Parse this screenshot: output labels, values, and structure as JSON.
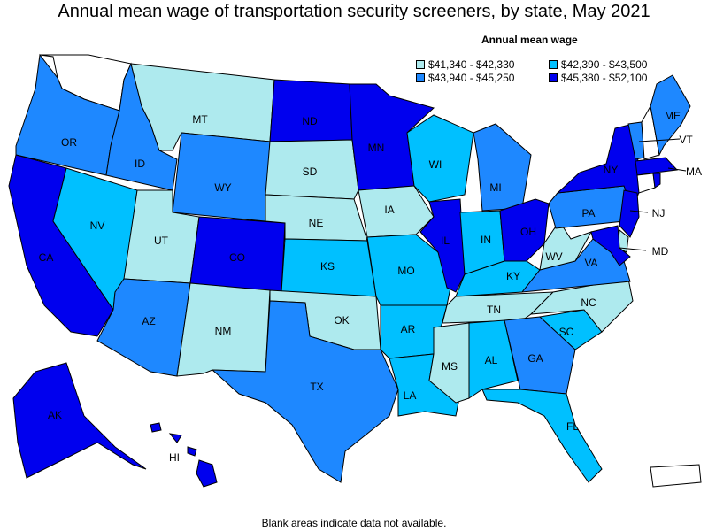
{
  "title": "Annual mean wage of transportation security screeners, by state, May 2021",
  "footnote": "Blank areas indicate data not available.",
  "legend": {
    "title": "Annual mean wage",
    "items": [
      {
        "label": "$41,340 - $42,330",
        "color": "#aeeaee"
      },
      {
        "label": "$42,390 - $43,500",
        "color": "#00c0ff"
      },
      {
        "label": "$43,940 - $45,250",
        "color": "#1e88ff"
      },
      {
        "label": "$45,380 - $52,100",
        "color": "#0000ee"
      }
    ]
  },
  "chart_data": {
    "type": "choropleth",
    "title": "Annual mean wage of transportation security screeners, by state, May 2021",
    "blank_color": "#ffffff",
    "states": [
      {
        "abbr": "WA",
        "class": -1
      },
      {
        "abbr": "OR",
        "class": 2
      },
      {
        "abbr": "CA",
        "class": 3
      },
      {
        "abbr": "NV",
        "class": 1
      },
      {
        "abbr": "ID",
        "class": 2
      },
      {
        "abbr": "MT",
        "class": 0
      },
      {
        "abbr": "WY",
        "class": 2
      },
      {
        "abbr": "UT",
        "class": 0
      },
      {
        "abbr": "AZ",
        "class": 2
      },
      {
        "abbr": "CO",
        "class": 3
      },
      {
        "abbr": "NM",
        "class": 0
      },
      {
        "abbr": "ND",
        "class": 3
      },
      {
        "abbr": "SD",
        "class": 0
      },
      {
        "abbr": "NE",
        "class": 0
      },
      {
        "abbr": "KS",
        "class": 1
      },
      {
        "abbr": "OK",
        "class": 0
      },
      {
        "abbr": "TX",
        "class": 2
      },
      {
        "abbr": "MN",
        "class": 3
      },
      {
        "abbr": "IA",
        "class": 0
      },
      {
        "abbr": "MO",
        "class": 1
      },
      {
        "abbr": "AR",
        "class": 1
      },
      {
        "abbr": "LA",
        "class": 1
      },
      {
        "abbr": "WI",
        "class": 1
      },
      {
        "abbr": "IL",
        "class": 3
      },
      {
        "abbr": "MI",
        "class": 2
      },
      {
        "abbr": "IN",
        "class": 1
      },
      {
        "abbr": "OH",
        "class": 3
      },
      {
        "abbr": "KY",
        "class": 1
      },
      {
        "abbr": "TN",
        "class": 0
      },
      {
        "abbr": "MS",
        "class": 0
      },
      {
        "abbr": "AL",
        "class": 1
      },
      {
        "abbr": "GA",
        "class": 2
      },
      {
        "abbr": "FL",
        "class": 1
      },
      {
        "abbr": "SC",
        "class": 1
      },
      {
        "abbr": "NC",
        "class": 0
      },
      {
        "abbr": "VA",
        "class": 2
      },
      {
        "abbr": "WV",
        "class": 0
      },
      {
        "abbr": "PA",
        "class": 2
      },
      {
        "abbr": "NY",
        "class": 3
      },
      {
        "abbr": "VT",
        "class": 2
      },
      {
        "abbr": "NH",
        "class": -1
      },
      {
        "abbr": "ME",
        "class": 2
      },
      {
        "abbr": "MA",
        "class": 3
      },
      {
        "abbr": "CT",
        "class": -1
      },
      {
        "abbr": "RI",
        "class": 3
      },
      {
        "abbr": "NJ",
        "class": 3
      },
      {
        "abbr": "DE",
        "class": 0
      },
      {
        "abbr": "MD",
        "class": 3
      },
      {
        "abbr": "AK",
        "class": 3
      },
      {
        "abbr": "HI",
        "class": 3
      },
      {
        "abbr": "PR",
        "class": -1
      }
    ]
  }
}
